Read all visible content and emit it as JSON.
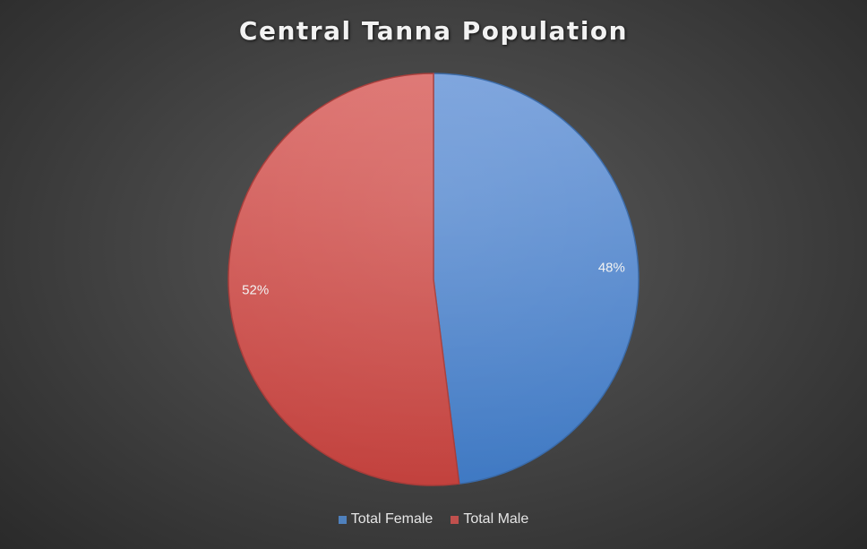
{
  "chart_data": {
    "type": "pie",
    "title": "Central Tanna Population",
    "categories": [
      "Total Female",
      "Total Male"
    ],
    "values": [
      48,
      52
    ],
    "data_labels": [
      "48%",
      "52%"
    ],
    "colors": [
      "#4f81bd",
      "#c0504d"
    ],
    "legend_position": "bottom"
  }
}
